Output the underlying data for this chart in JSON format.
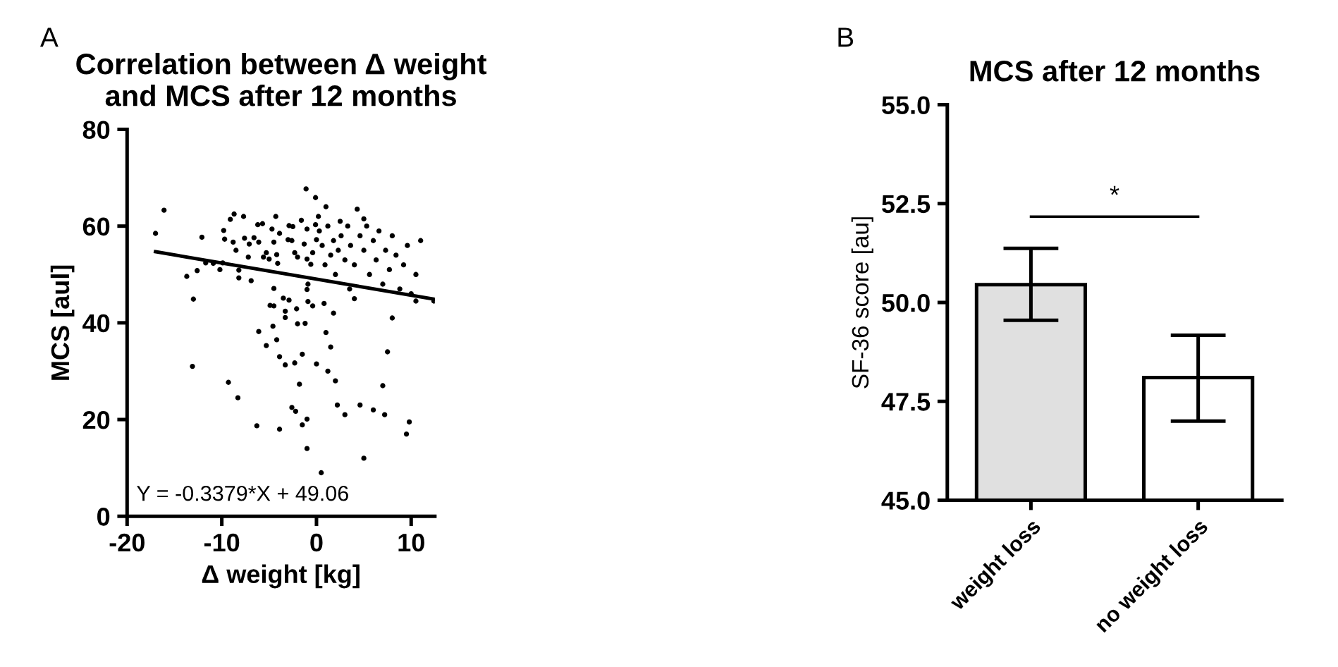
{
  "chart_data": [
    {
      "type": "scatter",
      "title": "Correlation between Δ weight\nand MCS after 12 months",
      "xlabel": "Δ weight [kg]",
      "ylabel": "MCS [aul]",
      "xlim": [
        -20,
        12.5
      ],
      "ylim": [
        0,
        80
      ],
      "xticks": [
        -20,
        -10,
        0,
        10
      ],
      "yticks": [
        0,
        20,
        40,
        60,
        80
      ],
      "annotations": [
        "A",
        "Y = -0.3379*X + 49.06"
      ],
      "series": [
        {
          "type": "scatter",
          "color": "#000000",
          "marker": "circle",
          "x": [
            -17.0,
            -16.1,
            -13.7,
            -13.0,
            -13.1,
            -12.6,
            -12.1,
            -11.7,
            -10.9,
            -10.2,
            -9.8,
            -9.7,
            -9.9,
            -9.1,
            -8.7,
            -8.8,
            -8.5,
            -8.2,
            -8.2,
            -9.3,
            -8.3,
            -7.7,
            -7.6,
            -7.2,
            -7.1,
            -6.9,
            -6.6,
            -6.2,
            -6.1,
            -5.7,
            -5.6,
            -5.3,
            -5.0,
            -4.7,
            -4.5,
            -4.3,
            -4.2,
            -4.1,
            -3.9,
            -6.1,
            -5.3,
            -4.9,
            -4.5,
            -4.5,
            -4.6,
            -4.2,
            -3.9,
            -6.3,
            -3.9,
            -3.5,
            -3.3,
            -3.3,
            -3.3,
            -2.9,
            -2.9,
            -3.0,
            -2.6,
            -2.5,
            -2.3,
            -2.0,
            -2.1,
            -2.0,
            -1.2,
            -2.3,
            -2.6,
            -2.2,
            -1.8,
            -1.5,
            -1.5,
            -1.0,
            -1.0,
            -1.6,
            -1.3,
            -1.1,
            -1.0,
            -1.0,
            -0.9,
            -1.0,
            -0.9,
            -0.4,
            -0.1,
            -0.1,
            0.0,
            0.0,
            -0.4,
            -0.6,
            0.5,
            0.8,
            1.0,
            1.2,
            1.5,
            1.8,
            2.0,
            2.2,
            3.0,
            3.5,
            4.0,
            4.6,
            5.0,
            6.0,
            7.0,
            7.2,
            7.5,
            8.0,
            9.5,
            9.8,
            10.5,
            12.4,
            11.0,
            0.3,
            0.6,
            0.9,
            1.2,
            1.5,
            1.8,
            2.0,
            2.3,
            2.6,
            3.0,
            3.3,
            3.6,
            4.0,
            4.3,
            4.6,
            5.0,
            5.3,
            5.6,
            6.0,
            6.3,
            6.6,
            7.0,
            7.3,
            7.7,
            8.0,
            8.4,
            8.8,
            9.2,
            9.6,
            10.0,
            10.5,
            0.2,
            1.0,
            2.5,
            5.0
          ],
          "values": [
            58.5,
            63.3,
            49.6,
            44.9,
            31.0,
            50.8,
            57.7,
            52.4,
            52.3,
            51.0,
            59.1,
            57.3,
            52.4,
            61.4,
            62.5,
            56.7,
            55.0,
            50.9,
            49.3,
            27.7,
            24.5,
            62.0,
            57.5,
            53.6,
            56.3,
            48.7,
            57.6,
            60.3,
            56.7,
            60.5,
            53.6,
            54.5,
            53.2,
            59.4,
            56.7,
            62.0,
            54.1,
            52.3,
            58.5,
            38.2,
            35.3,
            43.6,
            43.5,
            47.1,
            39.3,
            36.5,
            33.0,
            18.7,
            18.0,
            45.1,
            42.4,
            31.3,
            41.1,
            44.7,
            60.1,
            57.2,
            57.0,
            59.9,
            54.5,
            53.6,
            42.9,
            39.8,
            39.9,
            31.7,
            22.5,
            21.7,
            27.3,
            33.5,
            18.9,
            20.1,
            14.0,
            61.2,
            56.3,
            67.7,
            59.4,
            53.2,
            48.0,
            46.9,
            44.4,
            43.5,
            65.9,
            60.3,
            57.2,
            31.5,
            54.5,
            52.1,
            9.0,
            44.0,
            38.0,
            30.0,
            35.0,
            42.0,
            28.0,
            23.0,
            21.0,
            47.0,
            45.0,
            23.0,
            12.0,
            22.0,
            27.0,
            21.0,
            34.0,
            41.0,
            17.0,
            19.5,
            44.5,
            44.5,
            57.0,
            59.0,
            56.0,
            52.0,
            60.0,
            54.0,
            57.0,
            50.0,
            55.0,
            58.0,
            53.0,
            60.0,
            56.0,
            52.0,
            63.5,
            58.0,
            55.0,
            60.0,
            50.0,
            57.0,
            53.0,
            59.0,
            48.0,
            55.0,
            51.0,
            58.0,
            54.0,
            47.0,
            52.0,
            56.0,
            46.0,
            50.0,
            62.0,
            64.0,
            61.0,
            61.5
          ]
        },
        {
          "type": "line",
          "color": "#000000",
          "x": [
            -17.0,
            12.4
          ],
          "values": [
            54.7,
            44.9
          ]
        }
      ]
    },
    {
      "type": "bar",
      "title": "MCS after 12 months",
      "ylabel": "SF-36 score [au]",
      "categories": [
        "weight loss",
        "no weight loss"
      ],
      "values": [
        50.45,
        48.1
      ],
      "colors": [
        "#e0e0e0",
        "#ffffff"
      ],
      "errors": [
        [
          49.55,
          51.37
        ],
        [
          47.0,
          49.17
        ]
      ],
      "ylim": [
        45,
        55
      ],
      "yticks": [
        {
          "value": 45,
          "label": "45.0"
        },
        {
          "value": 47.5,
          "label": "47.5"
        },
        {
          "value": 50,
          "label": "50.0"
        },
        {
          "value": 52.5,
          "label": "52.5"
        },
        {
          "value": 55,
          "label": "55.0"
        }
      ],
      "annotations": [
        "B",
        "*"
      ]
    }
  ]
}
